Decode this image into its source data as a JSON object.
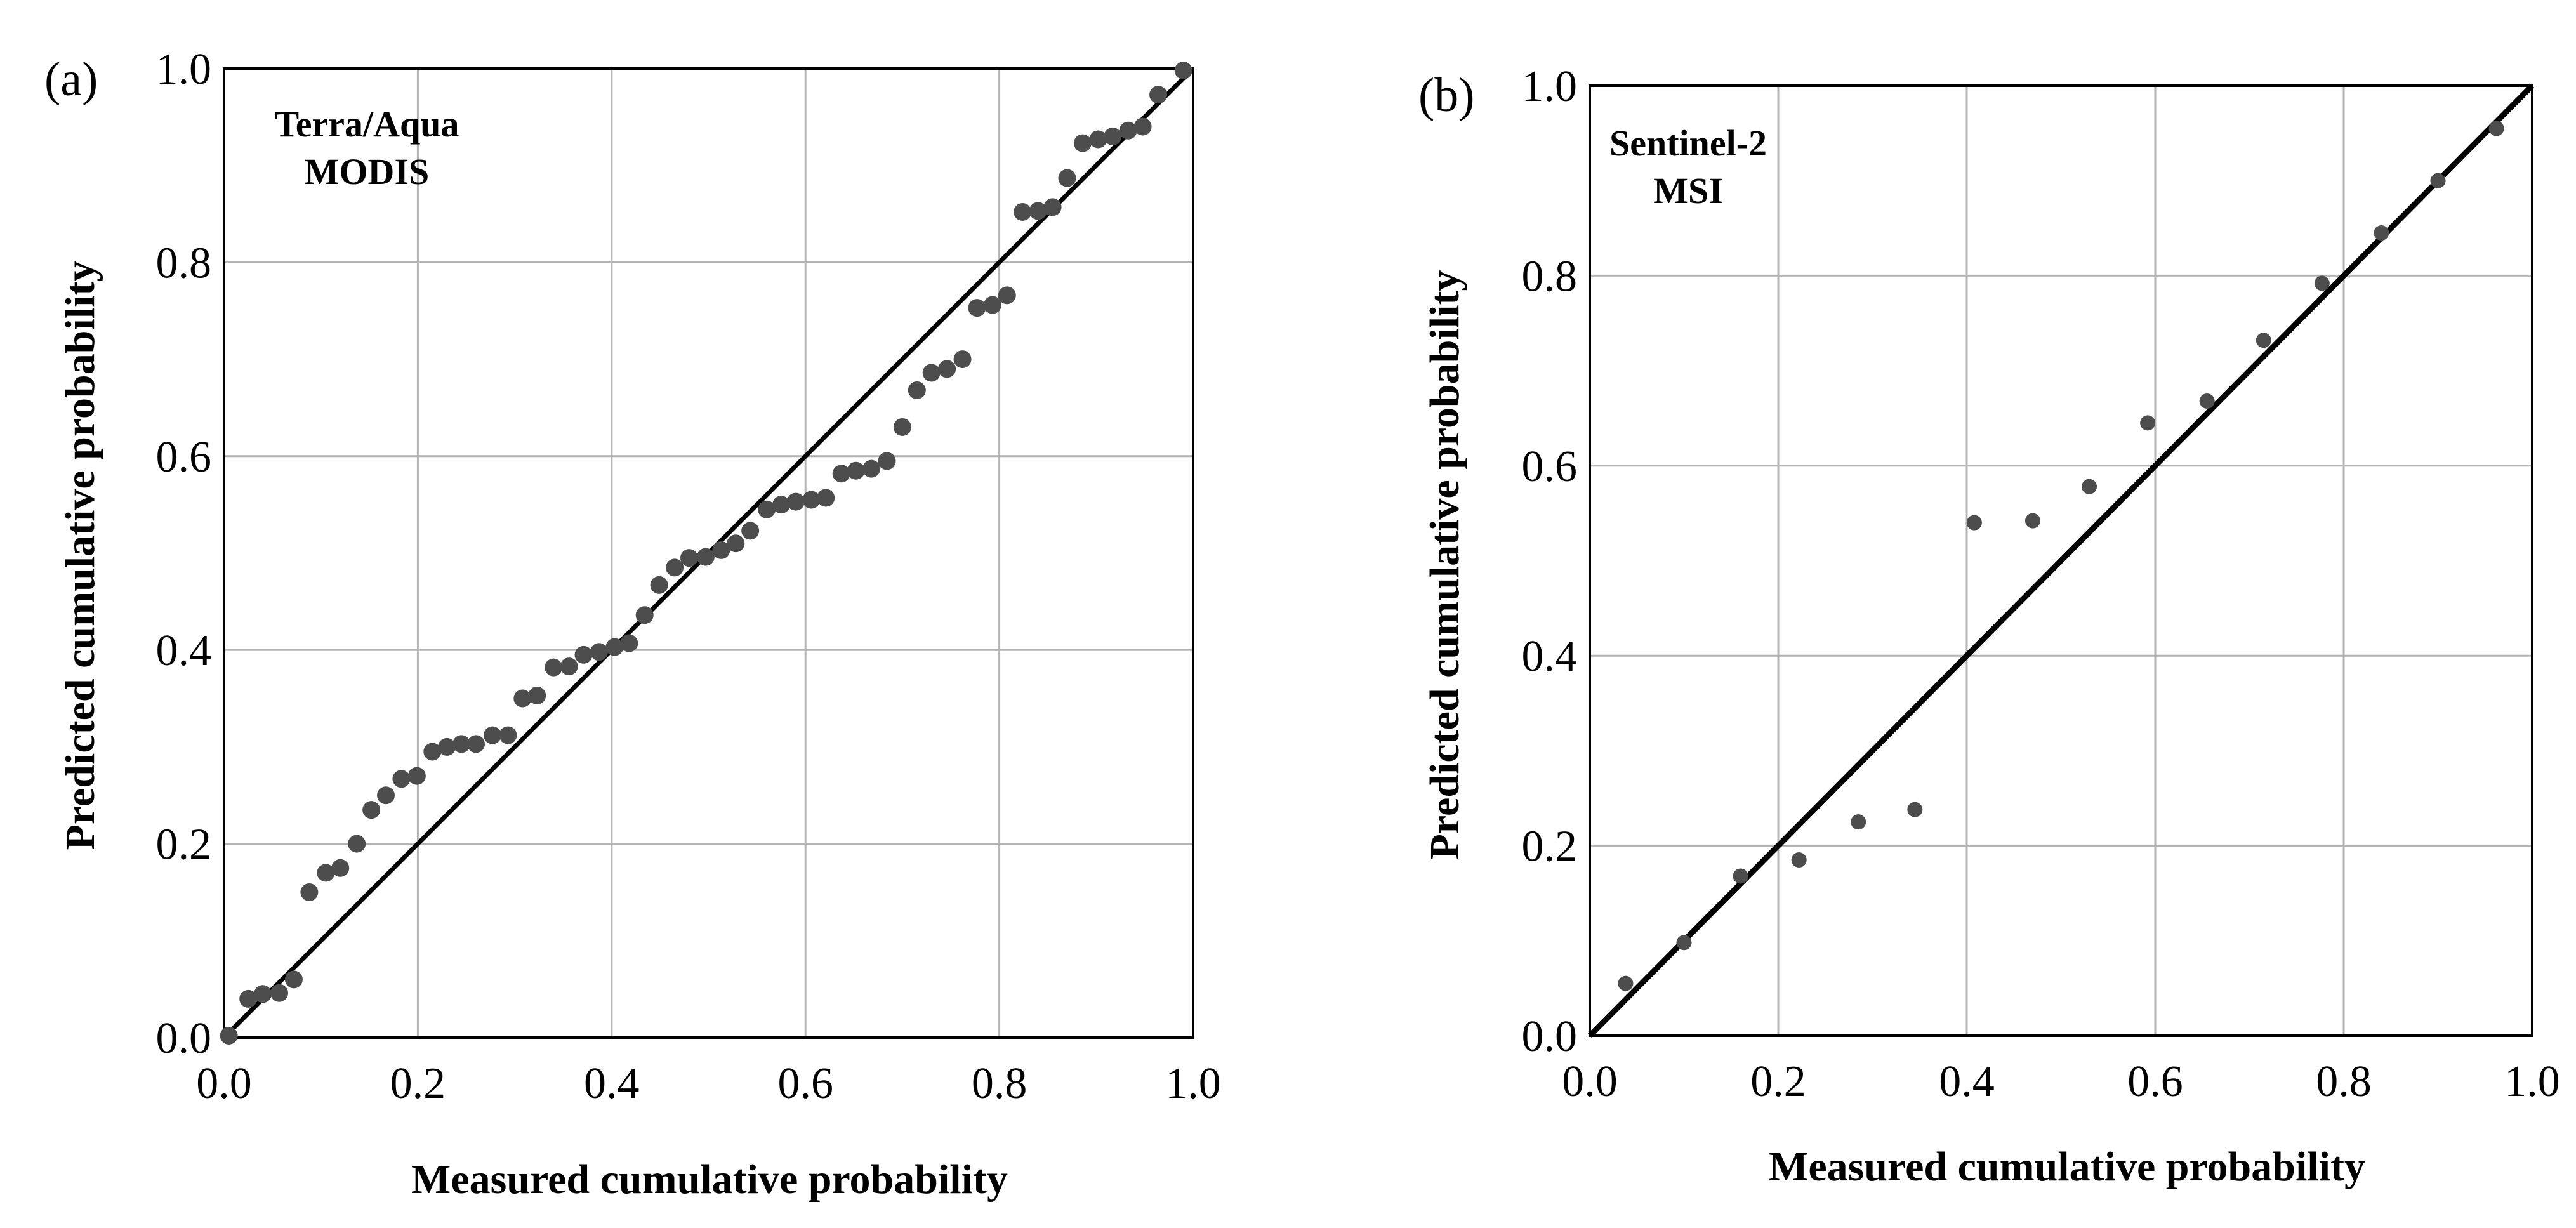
{
  "chart_data": [
    {
      "type": "scatter",
      "panel_label": "(a)",
      "annotation": [
        "Terra/Aqua",
        "MODIS"
      ],
      "xlabel": "Measured cumulative probability",
      "ylabel": "Predicted cumulative probability",
      "xlim": [
        0,
        1
      ],
      "ylim": [
        0,
        1
      ],
      "xticks": [
        "0.0",
        "0.2",
        "0.4",
        "0.6",
        "0.8",
        "1.0"
      ],
      "yticks": [
        "0.0",
        "0.2",
        "0.4",
        "0.6",
        "0.8",
        "1.0"
      ],
      "grid": true,
      "reference_line": [
        [
          0,
          0
        ],
        [
          1,
          1
        ]
      ],
      "points": [
        [
          0.005,
          0.002
        ],
        [
          0.025,
          0.04
        ],
        [
          0.04,
          0.045
        ],
        [
          0.057,
          0.046
        ],
        [
          0.072,
          0.06
        ],
        [
          0.088,
          0.15
        ],
        [
          0.105,
          0.17
        ],
        [
          0.12,
          0.175
        ],
        [
          0.137,
          0.2
        ],
        [
          0.152,
          0.235
        ],
        [
          0.167,
          0.25
        ],
        [
          0.183,
          0.267
        ],
        [
          0.199,
          0.27
        ],
        [
          0.215,
          0.295
        ],
        [
          0.23,
          0.3
        ],
        [
          0.245,
          0.303
        ],
        [
          0.26,
          0.303
        ],
        [
          0.277,
          0.312
        ],
        [
          0.293,
          0.312
        ],
        [
          0.308,
          0.35
        ],
        [
          0.323,
          0.353
        ],
        [
          0.34,
          0.382
        ],
        [
          0.356,
          0.383
        ],
        [
          0.371,
          0.395
        ],
        [
          0.387,
          0.398
        ],
        [
          0.403,
          0.403
        ],
        [
          0.418,
          0.407
        ],
        [
          0.434,
          0.436
        ],
        [
          0.449,
          0.467
        ],
        [
          0.465,
          0.485
        ],
        [
          0.48,
          0.495
        ],
        [
          0.497,
          0.496
        ],
        [
          0.513,
          0.503
        ],
        [
          0.528,
          0.51
        ],
        [
          0.543,
          0.523
        ],
        [
          0.56,
          0.545
        ],
        [
          0.575,
          0.55
        ],
        [
          0.59,
          0.553
        ],
        [
          0.606,
          0.555
        ],
        [
          0.621,
          0.557
        ],
        [
          0.637,
          0.582
        ],
        [
          0.652,
          0.585
        ],
        [
          0.668,
          0.587
        ],
        [
          0.684,
          0.595
        ],
        [
          0.7,
          0.63
        ],
        [
          0.715,
          0.668
        ],
        [
          0.73,
          0.686
        ],
        [
          0.746,
          0.69
        ],
        [
          0.762,
          0.7
        ],
        [
          0.777,
          0.753
        ],
        [
          0.793,
          0.756
        ],
        [
          0.808,
          0.766
        ],
        [
          0.824,
          0.852
        ],
        [
          0.84,
          0.853
        ],
        [
          0.855,
          0.857
        ],
        [
          0.87,
          0.887
        ],
        [
          0.886,
          0.923
        ],
        [
          0.902,
          0.927
        ],
        [
          0.917,
          0.93
        ],
        [
          0.933,
          0.936
        ],
        [
          0.948,
          0.94
        ],
        [
          0.964,
          0.973
        ],
        [
          0.99,
          0.998
        ]
      ]
    },
    {
      "type": "scatter",
      "panel_label": "(b)",
      "annotation": [
        "Sentinel-2",
        "MSI"
      ],
      "xlabel": "Measured cumulative probability",
      "ylabel": "Predicted cumulative probability",
      "xlim": [
        0,
        1
      ],
      "ylim": [
        0,
        1
      ],
      "xticks": [
        "0.0",
        "0.2",
        "0.4",
        "0.6",
        "0.8",
        "1.0"
      ],
      "yticks": [
        "0.0",
        "0.2",
        "0.4",
        "0.6",
        "0.8",
        "1.0"
      ],
      "grid": true,
      "reference_line": [
        [
          0,
          0
        ],
        [
          1,
          1
        ]
      ],
      "points": [
        [
          0.038,
          0.055
        ],
        [
          0.1,
          0.098
        ],
        [
          0.16,
          0.168
        ],
        [
          0.222,
          0.185
        ],
        [
          0.285,
          0.225
        ],
        [
          0.345,
          0.238
        ],
        [
          0.408,
          0.54
        ],
        [
          0.47,
          0.542
        ],
        [
          0.53,
          0.578
        ],
        [
          0.592,
          0.645
        ],
        [
          0.655,
          0.668
        ],
        [
          0.715,
          0.732
        ],
        [
          0.777,
          0.792
        ],
        [
          0.84,
          0.845
        ],
        [
          0.9,
          0.9
        ],
        [
          0.962,
          0.955
        ]
      ]
    }
  ]
}
